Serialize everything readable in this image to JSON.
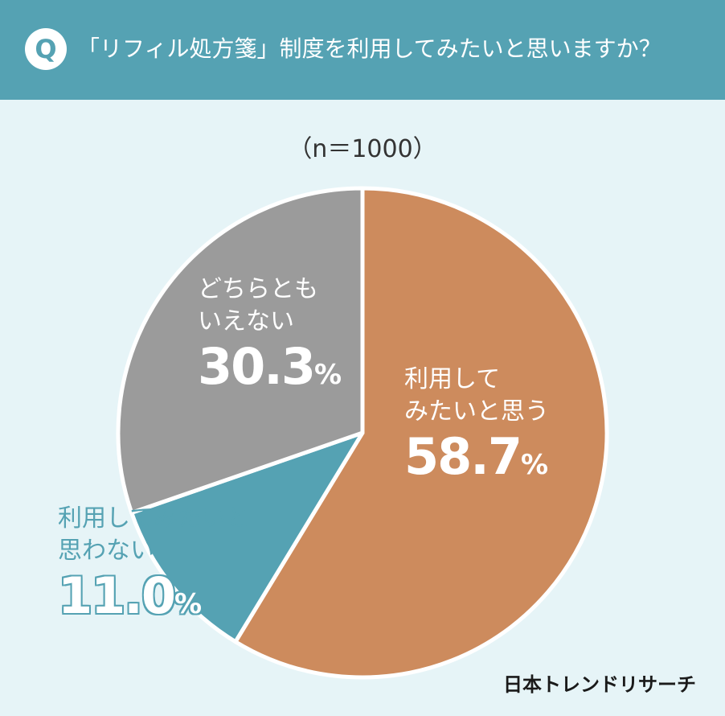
{
  "header": {
    "badge": "Q",
    "question": "「リフィル処方箋」制度を利用してみたいと思いますか？"
  },
  "sample_size": "（n＝1000）",
  "brand": "日本トレンドリサーチ",
  "colors": {
    "header_bg": "#55a2b3",
    "page_bg": "#e6f4f7",
    "yes": "#cd8b5d",
    "no": "#55a2b3",
    "neutral": "#9b9b9b"
  },
  "labels": {
    "yes": {
      "line1": "利用して",
      "line2": "みたいと思う",
      "num": "58.7",
      "unit": "%"
    },
    "no": {
      "line1": "利用してみたいと",
      "line2": "思わない",
      "num": "11.0",
      "unit": "%"
    },
    "neutral": {
      "line1": "どちらとも",
      "line2": "いえない",
      "num": "30.3",
      "unit": "%"
    }
  },
  "chart_data": {
    "type": "pie",
    "title": "「リフィル処方箋」制度を利用してみたいと思いますか？",
    "n": 1000,
    "start": "12 o'clock",
    "direction": "clockwise",
    "slices": [
      {
        "label": "利用してみたいと思う",
        "value": 58.7,
        "color": "#cd8b5d"
      },
      {
        "label": "利用してみたいと思わない",
        "value": 11.0,
        "color": "#55a2b3"
      },
      {
        "label": "どちらともいえない",
        "value": 30.3,
        "color": "#9b9b9b"
      }
    ]
  }
}
